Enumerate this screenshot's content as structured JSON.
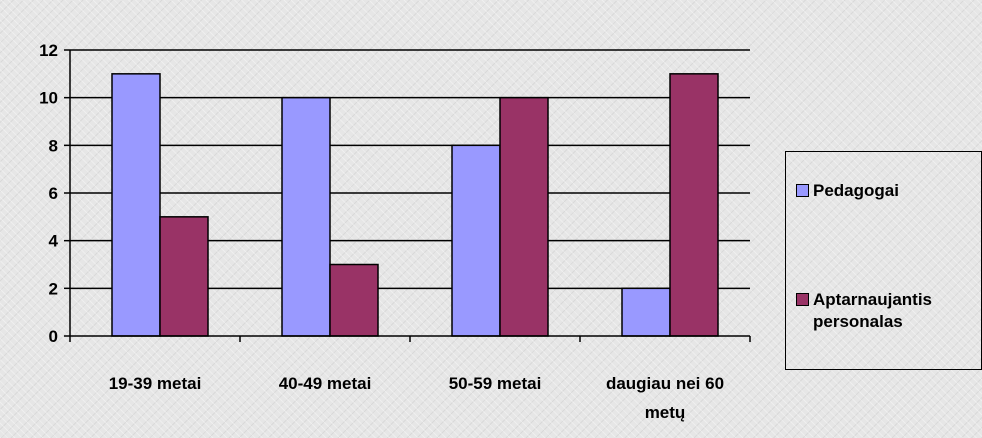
{
  "chart_data": {
    "type": "bar",
    "categories": [
      "19-39  metai",
      "40-49 metai",
      "50-59 metai",
      "daugiau nei 60 metų"
    ],
    "category_lines": [
      [
        "19-39  metai"
      ],
      [
        "40-49 metai"
      ],
      [
        "50-59 metai"
      ],
      [
        "daugiau nei 60",
        "metų"
      ]
    ],
    "series": [
      {
        "name": "Pedagogai",
        "values": [
          11,
          10,
          8,
          2
        ],
        "color": "#9999ff"
      },
      {
        "name": "Aptarnaujantis personalas",
        "values": [
          5,
          3,
          10,
          11
        ],
        "color": "#993366"
      }
    ],
    "title": "",
    "xlabel": "",
    "ylabel": "",
    "ylim": [
      0,
      12
    ],
    "yticks": [
      "0",
      "2",
      "4",
      "6",
      "8",
      "10",
      "12"
    ],
    "grid": true,
    "legend_position": "right"
  },
  "legend": {
    "items": [
      {
        "lines": [
          "Pedagogai"
        ],
        "color": "#9999ff"
      },
      {
        "lines": [
          "Aptarnaujantis",
          "personalas"
        ],
        "color": "#993366"
      }
    ]
  }
}
